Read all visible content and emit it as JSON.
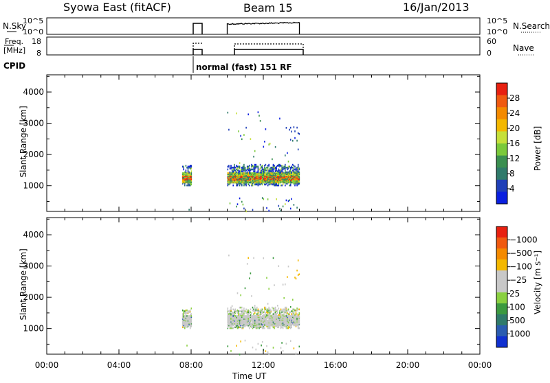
{
  "header": {
    "station": "Syowa East (fitACF)",
    "beam": "Beam 15",
    "date": "16/Jan/2013"
  },
  "nsky_panel": {
    "label": "N.Sky",
    "left_ticks": [
      "10^5",
      "10^0"
    ],
    "right_ticks": [
      "10^5",
      "10^0"
    ],
    "right_label": "N.Search"
  },
  "freq_panel": {
    "label_line1": "Freq.",
    "label_line2": "[MHz]",
    "left_ticks": [
      "18",
      "8"
    ],
    "right_ticks": [
      "60",
      "0"
    ],
    "right_label": "Nave"
  },
  "cpid": {
    "label": "CPID",
    "mode_text": "normal (fast) 151 RF"
  },
  "chart_data": [
    {
      "type": "heatmap",
      "xlabel": "",
      "ylabel": "Slant Range [km]",
      "y_ticks": [
        "1000",
        "2000",
        "3000",
        "4000"
      ],
      "ylim": [
        180,
        4550
      ],
      "x_ticks_hours": [
        0,
        4,
        8,
        12,
        16,
        20,
        24
      ],
      "colorbar": {
        "label": "Power [dB]",
        "tick_labels": [
          "4",
          "8",
          "12",
          "16",
          "20",
          "24",
          "28"
        ],
        "colors": [
          "#0a1fe0",
          "#2040b8",
          "#2f7a6a",
          "#3a8f50",
          "#7ac93a",
          "#c6e03a",
          "#f4b800",
          "#f48a00",
          "#f05a10",
          "#e82010"
        ]
      },
      "observation_intervals_hours": [
        [
          7.5,
          8.0
        ],
        [
          10.0,
          14.0
        ]
      ],
      "echo_band_km": [
        1100,
        1450
      ],
      "far_echo_km": [
        2400,
        3300
      ]
    },
    {
      "type": "heatmap",
      "xlabel": "Time UT",
      "ylabel": "Slant Range [km]",
      "y_ticks": [
        "1000",
        "2000",
        "3000",
        "4000"
      ],
      "ylim": [
        180,
        4550
      ],
      "x_tick_labels": [
        "00:00",
        "04:00",
        "08:00",
        "12:00",
        "16:00",
        "20:00",
        "00:00"
      ],
      "colorbar": {
        "label": "Velocity [m s⁻¹]",
        "tick_labels": [
          "1000",
          "500",
          "100",
          "25",
          "−25",
          "−100",
          "−500",
          "−1000"
        ],
        "colors": [
          "#1030d0",
          "#2a5cb0",
          "#2f7a6a",
          "#3c9a40",
          "#8ad040",
          "#c8c8c8",
          "#c8c8c8",
          "#f4b800",
          "#f48a00",
          "#f05a10",
          "#e82010"
        ]
      },
      "observation_intervals_hours": [
        [
          7.5,
          8.0
        ],
        [
          10.0,
          14.0
        ]
      ],
      "echo_band_km": [
        1100,
        1450
      ]
    }
  ]
}
